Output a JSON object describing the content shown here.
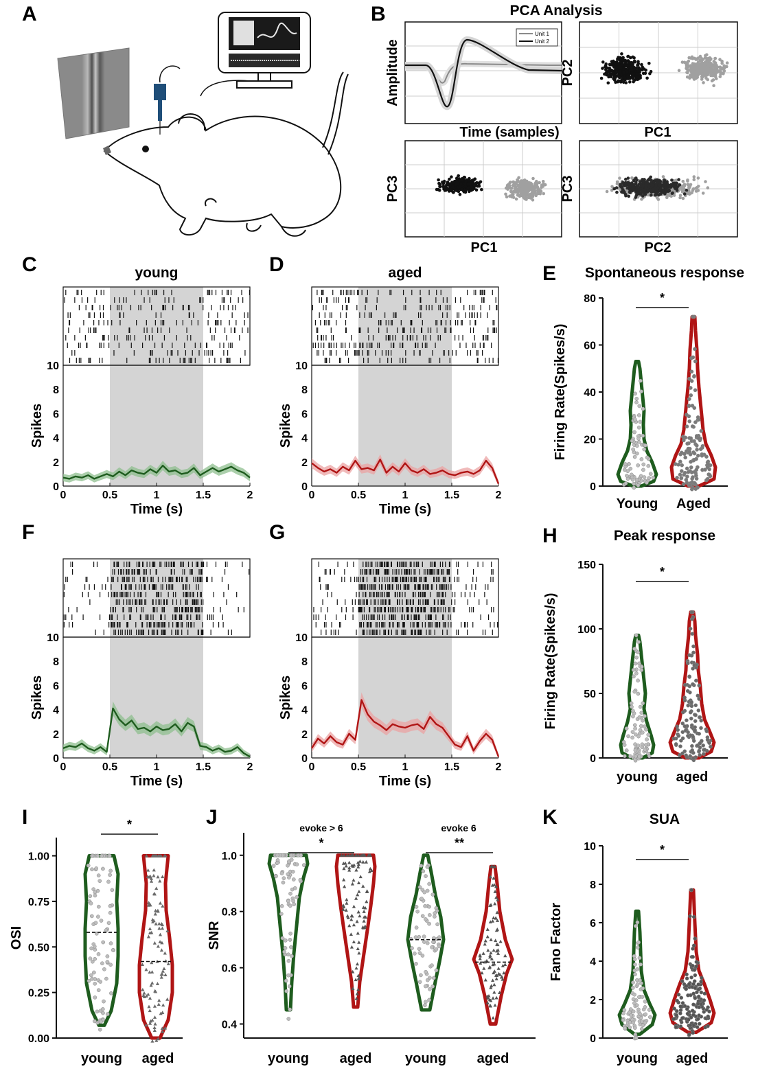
{
  "colors": {
    "young": "#1e5c1e",
    "young_fill": "#8fbf8f",
    "aged": "#b01515",
    "aged_fill": "#eba3a3",
    "shade": "#d4d4d4",
    "pc_unit1": "#a0a0a0",
    "pc_unit2": "#111111",
    "electrode": "#1f4e79"
  },
  "panel_letters": {
    "a": "A",
    "b": "B",
    "c": "C",
    "d": "D",
    "e": "E",
    "f": "F",
    "g": "G",
    "h": "H",
    "i": "I",
    "j": "J",
    "k": "K"
  },
  "panel_b": {
    "title": "PCA Analysis",
    "waveform": {
      "ylabel": "Amplitude",
      "xlabel": "Time (samples)",
      "legend": [
        "Unit 1",
        "Unit 2"
      ]
    },
    "scatter1": {
      "xlabel": "PC1",
      "ylabel": "PC2"
    },
    "scatter2": {
      "xlabel": "PC1",
      "ylabel": "PC3"
    },
    "scatter3": {
      "xlabel": "PC2",
      "ylabel": "PC3"
    }
  },
  "raster_panels": {
    "c": {
      "title": "young",
      "color": "young",
      "trace": [
        0.7,
        0.6,
        0.8,
        0.7,
        0.9,
        0.6,
        0.8,
        1.0,
        0.8,
        1.2,
        0.9,
        1.3,
        1.1,
        1.0,
        1.4,
        1.1,
        1.7,
        1.2,
        1.3,
        1.0,
        1.1,
        1.5,
        0.9,
        1.2,
        1.5,
        1.2,
        1.4,
        1.6,
        1.3,
        1.1,
        0.7
      ]
    },
    "d": {
      "title": "aged",
      "color": "aged",
      "trace": [
        1.9,
        1.5,
        1.2,
        1.4,
        1.1,
        1.6,
        1.3,
        2.1,
        1.4,
        1.5,
        1.3,
        2.2,
        1.1,
        1.6,
        1.2,
        1.9,
        1.3,
        1.1,
        1.4,
        1.0,
        1.1,
        1.3,
        1.0,
        0.9,
        1.1,
        1.2,
        1.0,
        1.3,
        2.1,
        1.5,
        0.2
      ]
    },
    "f": {
      "title": "",
      "color": "young",
      "trace": [
        0.8,
        1.0,
        0.9,
        1.2,
        0.8,
        0.6,
        0.9,
        0.5,
        4.1,
        3.2,
        2.7,
        3.1,
        2.4,
        2.5,
        2.2,
        2.6,
        2.3,
        2.4,
        2.8,
        2.2,
        2.9,
        2.6,
        1.0,
        0.9,
        0.6,
        0.8,
        0.5,
        0.6,
        0.9,
        0.4,
        0.1
      ]
    },
    "g": {
      "title": "",
      "color": "aged",
      "trace": [
        0.8,
        1.6,
        1.2,
        1.8,
        1.3,
        1.1,
        2.0,
        1.5,
        4.8,
        3.6,
        3.0,
        2.7,
        2.3,
        2.8,
        2.6,
        2.5,
        2.7,
        2.8,
        2.4,
        3.4,
        2.8,
        2.5,
        1.8,
        1.1,
        0.9,
        1.8,
        0.6,
        1.4,
        2.0,
        1.5,
        0.1
      ]
    },
    "common": {
      "ylabel": "Spikes",
      "xlabel": "Time (s)",
      "raster_top": "10",
      "yticks": [
        "0",
        "2",
        "4",
        "6",
        "8"
      ],
      "xticks": [
        "0",
        "0.5",
        "1",
        "1.5",
        "2"
      ],
      "stim_on": 0.5,
      "stim_off": 1.5,
      "xmax": 2,
      "ymax": 10
    }
  },
  "violin_panels": {
    "e": {
      "title": "Spontaneous response",
      "ylabel": "Firing Rate(Spikes/s)",
      "categories": [
        "Young",
        "Aged"
      ],
      "yticks": [
        "0",
        "20",
        "40",
        "60",
        "80"
      ],
      "ymax": 80,
      "sig": "*",
      "young_max": 53,
      "aged_max": 72
    },
    "h": {
      "title": "Peak response",
      "ylabel": "Firing Rate(Spikes/s)",
      "categories": [
        "young",
        "aged"
      ],
      "yticks": [
        "0",
        "50",
        "100",
        "150"
      ],
      "ymax": 150,
      "sig": "*",
      "young_max": 95,
      "aged_max": 113
    },
    "i": {
      "title": "",
      "ylabel": "OSI",
      "categories": [
        "young",
        "aged"
      ],
      "yticks": [
        "0.00",
        "0.25",
        "0.50",
        "0.75",
        "1.00"
      ],
      "ymax": 1.1,
      "sig": "*",
      "median_young": 0.58,
      "median_aged": 0.42
    },
    "j": {
      "title": "",
      "ylabel": "SNR",
      "categories": [
        "young",
        "aged",
        "young",
        "aged"
      ],
      "yticks": [
        "0.4",
        "0.6",
        "0.8",
        "1.0"
      ],
      "groups": [
        "evoke > 6",
        "evoke 6"
      ],
      "sig": [
        "*",
        "**"
      ],
      "median_young_2": 0.7,
      "median_aged_2": 0.62
    },
    "k": {
      "title": "SUA",
      "ylabel": "Fano Factor",
      "categories": [
        "young",
        "aged"
      ],
      "yticks": [
        "0",
        "2",
        "4",
        "6",
        "8",
        "10"
      ],
      "ymax": 10,
      "sig": "*",
      "young_max": 6.6,
      "aged_max": 7.7
    }
  }
}
